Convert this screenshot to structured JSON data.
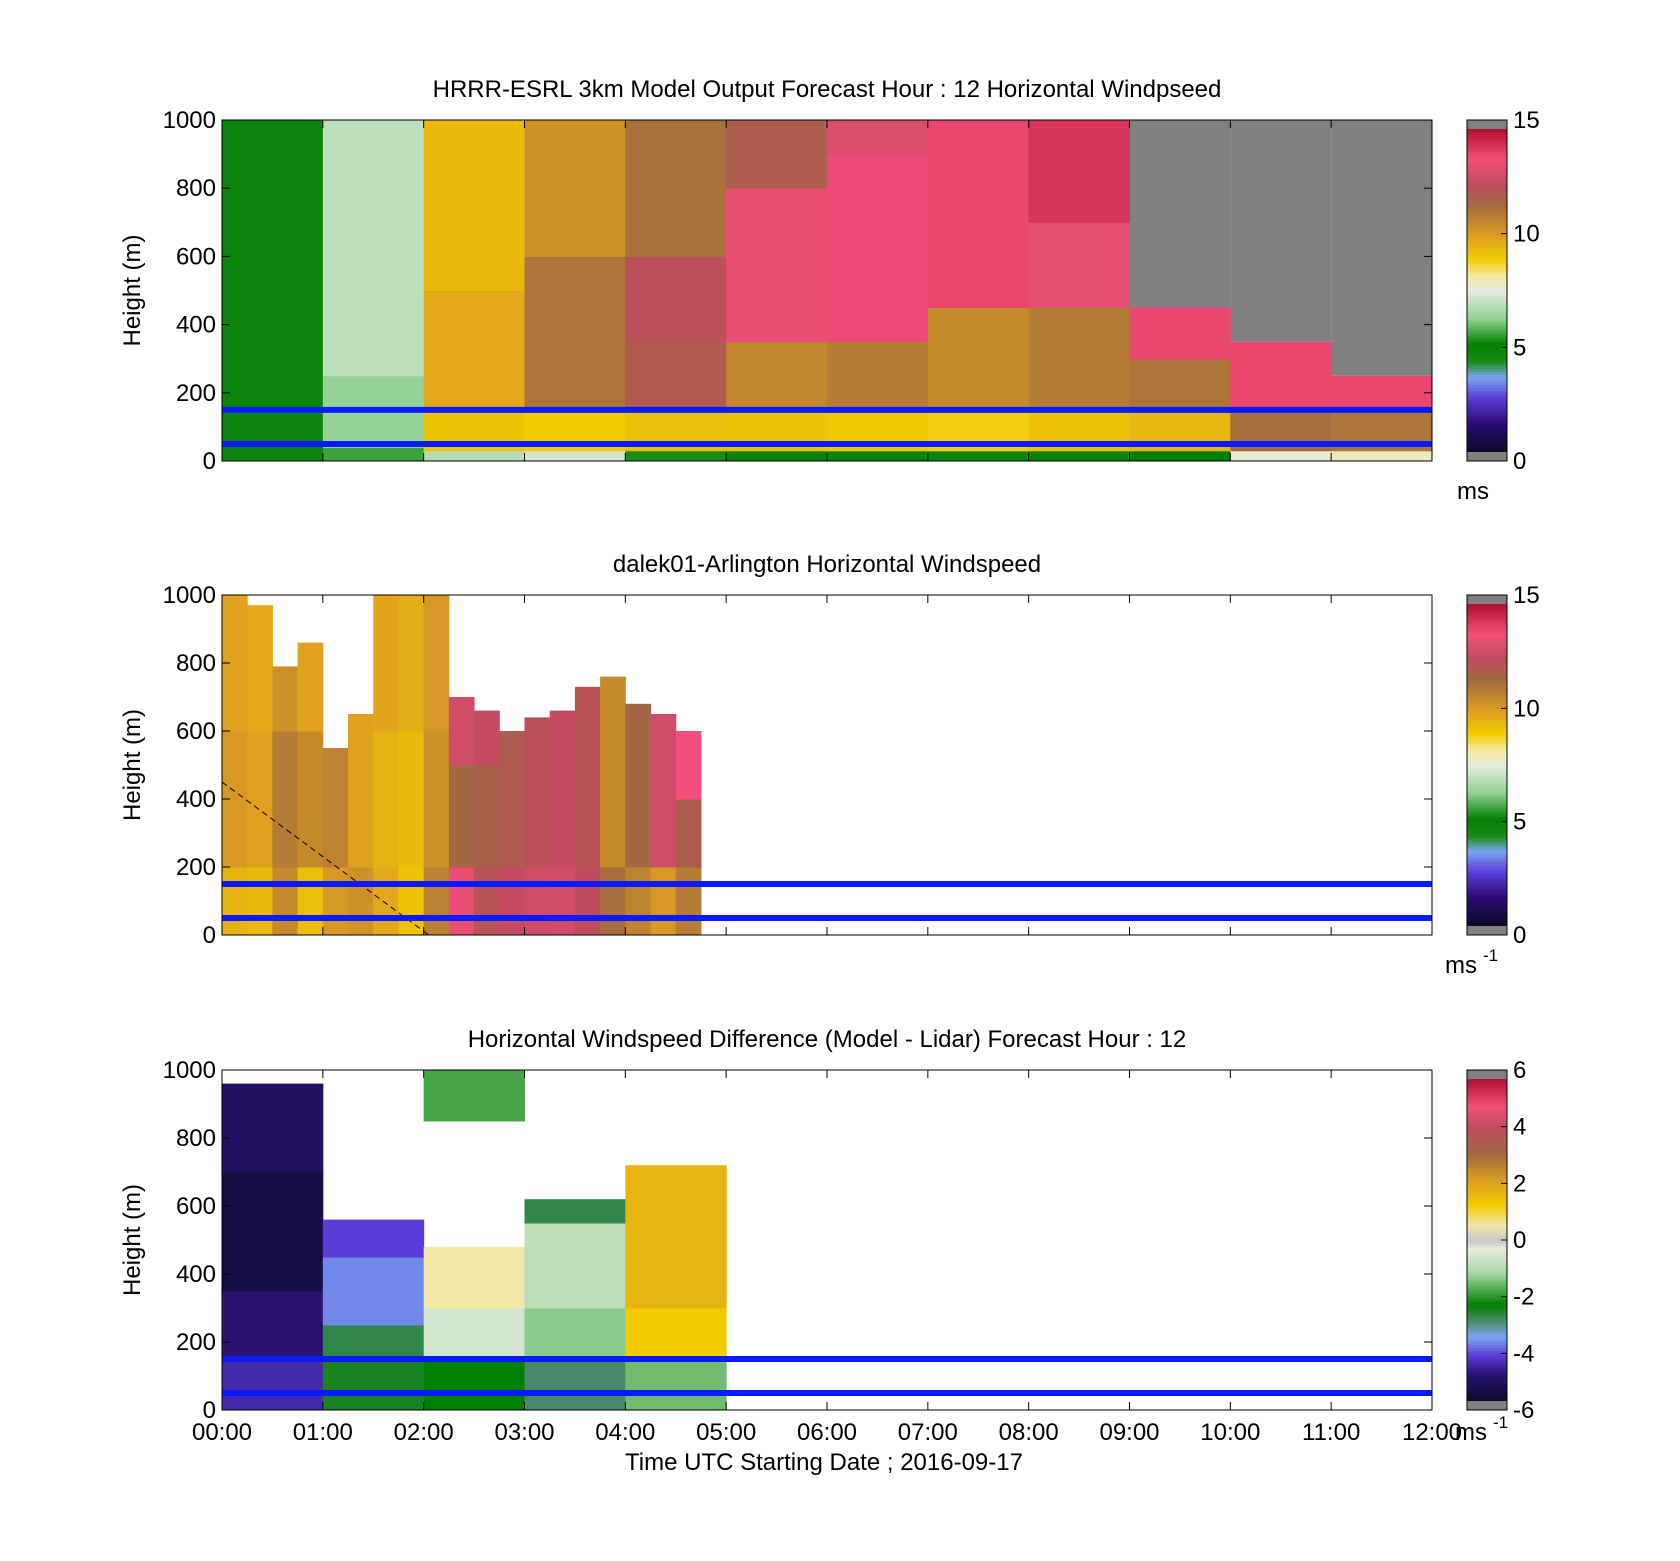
{
  "chart_data": [
    {
      "type": "heatmap",
      "title": "HRRR-ESRL 3km Model Output   Forecast Hour : 12 Horizontal Windpseed",
      "xlabel": "",
      "ylabel": "Height (m)",
      "xlim": [
        0,
        12
      ],
      "ylim": [
        0,
        1000
      ],
      "yticks": [
        0,
        200,
        400,
        600,
        800,
        1000
      ],
      "xticks": [
        0,
        1,
        2,
        3,
        4,
        5,
        6,
        7,
        8,
        9,
        10,
        11,
        12
      ],
      "xticklabels": [],
      "colorbar": {
        "range": [
          0,
          15
        ],
        "ticks": [
          0,
          5,
          10,
          15
        ],
        "unit": "ms",
        "unit_sup": ""
      },
      "hlines": [
        150,
        50
      ],
      "grid": false,
      "columns": [
        {
          "t0": 0,
          "t1": 1,
          "top": 1000,
          "values": [
            [
              0,
              40,
              4.6
            ],
            [
              40,
              60,
              4.8
            ],
            [
              60,
              1000,
              4.7
            ]
          ]
        },
        {
          "t0": 1,
          "t1": 2,
          "top": 1000,
          "values": [
            [
              0,
              40,
              5.5
            ],
            [
              40,
              250,
              6.3
            ],
            [
              250,
              1000,
              6.9
            ]
          ]
        },
        {
          "t0": 2,
          "t1": 3,
          "top": 1000,
          "values": [
            [
              0,
              30,
              6.8
            ],
            [
              30,
              150,
              9.2
            ],
            [
              150,
              500,
              9.8
            ],
            [
              500,
              1000,
              9.4
            ]
          ]
        },
        {
          "t0": 3,
          "t1": 4,
          "top": 1000,
          "values": [
            [
              0,
              30,
              7.2
            ],
            [
              30,
              150,
              9.0
            ],
            [
              150,
              600,
              11.2
            ],
            [
              600,
              1000,
              10.4
            ]
          ]
        },
        {
          "t0": 4,
          "t1": 5,
          "top": 1000,
          "values": [
            [
              0,
              30,
              5.2
            ],
            [
              30,
              150,
              9.3
            ],
            [
              150,
              350,
              12.0
            ],
            [
              350,
              600,
              12.3
            ],
            [
              600,
              1000,
              11.3
            ]
          ]
        },
        {
          "t0": 5,
          "t1": 6,
          "top": 1000,
          "values": [
            [
              0,
              30,
              4.8
            ],
            [
              30,
              150,
              9.2
            ],
            [
              150,
              350,
              10.7
            ],
            [
              350,
              800,
              13.4
            ],
            [
              800,
              1000,
              11.9
            ]
          ]
        },
        {
          "t0": 6,
          "t1": 7,
          "top": 1000,
          "values": [
            [
              0,
              30,
              4.8
            ],
            [
              30,
              150,
              9.1
            ],
            [
              150,
              350,
              11.0
            ],
            [
              350,
              900,
              13.7
            ],
            [
              900,
              1000,
              13.1
            ]
          ]
        },
        {
          "t0": 7,
          "t1": 8,
          "top": 1000,
          "values": [
            [
              0,
              30,
              4.6
            ],
            [
              30,
              150,
              8.9
            ],
            [
              150,
              450,
              10.6
            ],
            [
              450,
              1000,
              13.8
            ]
          ]
        },
        {
          "t0": 8,
          "t1": 9,
          "top": 1000,
          "values": [
            [
              0,
              30,
              4.8
            ],
            [
              30,
              150,
              9.2
            ],
            [
              150,
              450,
              11.0
            ],
            [
              450,
              700,
              13.3
            ],
            [
              700,
              1000,
              14.2
            ]
          ]
        },
        {
          "t0": 9,
          "t1": 10,
          "top": 450,
          "values": [
            [
              0,
              30,
              5.0
            ],
            [
              30,
              150,
              9.5
            ],
            [
              150,
              300,
              11.2
            ],
            [
              300,
              450,
              13.8
            ]
          ]
        },
        {
          "t0": 10,
          "t1": 11,
          "top": 350,
          "values": [
            [
              0,
              30,
              7.7
            ],
            [
              30,
              150,
              11.4
            ],
            [
              150,
              350,
              13.8
            ]
          ]
        },
        {
          "t0": 11,
          "t1": 12,
          "top": 250,
          "values": [
            [
              0,
              30,
              7.9
            ],
            [
              30,
              150,
              11.2
            ],
            [
              150,
              250,
              13.8
            ]
          ]
        }
      ],
      "nodata_regions": [
        {
          "t0": 9,
          "t1": 10,
          "y0": 450,
          "y1": 1000
        },
        {
          "t0": 10,
          "t1": 11,
          "y0": 350,
          "y1": 1000
        },
        {
          "t0": 11,
          "t1": 12,
          "y0": 250,
          "y1": 1000
        }
      ]
    },
    {
      "type": "heatmap",
      "title": "dalek01-Arlington  Horizontal Windspeed",
      "xlabel": "",
      "ylabel": "Height (m)",
      "xlim": [
        0,
        12
      ],
      "ylim": [
        0,
        1000
      ],
      "yticks": [
        0,
        200,
        400,
        600,
        800,
        1000
      ],
      "xticks": [
        0,
        1,
        2,
        3,
        4,
        5,
        6,
        7,
        8,
        9,
        10,
        11,
        12
      ],
      "xticklabels": [],
      "colorbar": {
        "range": [
          0,
          15
        ],
        "ticks": [
          0,
          5,
          10,
          15
        ],
        "unit": "ms",
        "unit_sup": "-1"
      },
      "hlines": [
        150,
        50
      ],
      "grid": false,
      "dashed_line": {
        "from": [
          0,
          450
        ],
        "to": [
          2.05,
          0
        ]
      },
      "columns": [
        {
          "t0": 0.0,
          "t1": 0.25,
          "top": 1000,
          "values": [
            [
              0,
              200,
              9.6
            ],
            [
              200,
              600,
              10.2
            ],
            [
              600,
              1000,
              10.0
            ]
          ]
        },
        {
          "t0": 0.25,
          "t1": 0.5,
          "top": 970,
          "values": [
            [
              0,
              200,
              9.4
            ],
            [
              200,
              600,
              10.0
            ],
            [
              600,
              970,
              9.8
            ]
          ]
        },
        {
          "t0": 0.5,
          "t1": 0.75,
          "top": 790,
          "values": [
            [
              0,
              200,
              10.6
            ],
            [
              200,
              600,
              11.0
            ],
            [
              600,
              790,
              10.4
            ]
          ]
        },
        {
          "t0": 0.75,
          "t1": 1.0,
          "top": 860,
          "values": [
            [
              0,
              200,
              9.3
            ],
            [
              200,
              600,
              10.6
            ],
            [
              600,
              860,
              10.0
            ]
          ]
        },
        {
          "t0": 1.0,
          "t1": 1.25,
          "top": 550,
          "values": [
            [
              0,
              200,
              10.2
            ],
            [
              200,
              550,
              10.8
            ]
          ]
        },
        {
          "t0": 1.25,
          "t1": 1.5,
          "top": 650,
          "values": [
            [
              0,
              200,
              10.4
            ],
            [
              200,
              650,
              10.0
            ]
          ]
        },
        {
          "t0": 1.5,
          "t1": 1.75,
          "top": 1000,
          "values": [
            [
              0,
              200,
              9.8
            ],
            [
              200,
              600,
              9.6
            ],
            [
              600,
              1000,
              9.9
            ]
          ]
        },
        {
          "t0": 1.75,
          "t1": 2.0,
          "top": 1000,
          "values": [
            [
              0,
              200,
              9.2
            ],
            [
              200,
              600,
              9.4
            ],
            [
              600,
              1000,
              9.7
            ]
          ]
        },
        {
          "t0": 2.0,
          "t1": 2.25,
          "top": 1000,
          "values": [
            [
              0,
              200,
              10.9
            ],
            [
              200,
              600,
              10.4
            ],
            [
              600,
              1000,
              10.2
            ]
          ]
        },
        {
          "t0": 2.25,
          "t1": 2.5,
          "top": 700,
          "values": [
            [
              0,
              200,
              13.4
            ],
            [
              200,
              500,
              11.6
            ],
            [
              500,
              700,
              12.8
            ]
          ]
        },
        {
          "t0": 2.5,
          "t1": 2.75,
          "top": 660,
          "values": [
            [
              0,
              200,
              12.2
            ],
            [
              200,
              500,
              11.8
            ],
            [
              500,
              660,
              12.6
            ]
          ]
        },
        {
          "t0": 2.75,
          "t1": 3.0,
          "top": 600,
          "values": [
            [
              0,
              200,
              12.6
            ],
            [
              200,
              600,
              12.0
            ]
          ]
        },
        {
          "t0": 3.0,
          "t1": 3.25,
          "top": 640,
          "values": [
            [
              0,
              200,
              12.8
            ],
            [
              200,
              640,
              12.3
            ]
          ]
        },
        {
          "t0": 3.25,
          "t1": 3.5,
          "top": 660,
          "values": [
            [
              0,
              200,
              12.9
            ],
            [
              200,
              660,
              12.6
            ]
          ]
        },
        {
          "t0": 3.5,
          "t1": 3.75,
          "top": 730,
          "values": [
            [
              0,
              200,
              12.4
            ],
            [
              200,
              730,
              12.2
            ]
          ]
        },
        {
          "t0": 3.75,
          "t1": 4.0,
          "top": 760,
          "values": [
            [
              0,
              200,
              11.4
            ],
            [
              200,
              760,
              10.6
            ]
          ]
        },
        {
          "t0": 4.0,
          "t1": 4.25,
          "top": 680,
          "values": [
            [
              0,
              200,
              10.8
            ],
            [
              200,
              680,
              11.6
            ]
          ]
        },
        {
          "t0": 4.25,
          "t1": 4.5,
          "top": 650,
          "values": [
            [
              0,
              200,
              10.2
            ],
            [
              200,
              650,
              12.8
            ]
          ]
        },
        {
          "t0": 4.5,
          "t1": 4.75,
          "top": 600,
          "values": [
            [
              0,
              200,
              11.0
            ],
            [
              200,
              400,
              11.9
            ],
            [
              400,
              600,
              13.6
            ]
          ]
        }
      ]
    },
    {
      "type": "heatmap",
      "title": "Horizontal Windspeed Difference (Model - Lidar) Forecast Hour : 12",
      "xlabel": "Time UTC  Starting Date ; 2016-09-17",
      "ylabel": "Height (m)",
      "xlim": [
        0,
        12
      ],
      "ylim": [
        0,
        1000
      ],
      "yticks": [
        0,
        200,
        400,
        600,
        800,
        1000
      ],
      "xticks": [
        0,
        1,
        2,
        3,
        4,
        5,
        6,
        7,
        8,
        9,
        10,
        11,
        12
      ],
      "xticklabels": [
        "00:00",
        "01:00",
        "02:00",
        "03:00",
        "04:00",
        "05:00",
        "06:00",
        "07:00",
        "08:00",
        "09:00",
        "10:00",
        "11:00",
        "12:00"
      ],
      "colorbar": {
        "range": [
          -6,
          6
        ],
        "ticks": [
          -6,
          -4,
          -2,
          0,
          2,
          4,
          6
        ],
        "unit": "ms",
        "unit_sup": "-1"
      },
      "hlines": [
        150,
        50
      ],
      "grid": false,
      "columns": [
        {
          "t0": 0,
          "t1": 1,
          "top": 960,
          "values": [
            [
              0,
              150,
              -4.6
            ],
            [
              150,
              350,
              -5.0
            ],
            [
              350,
              700,
              -5.6
            ],
            [
              700,
              960,
              -5.2
            ]
          ]
        },
        {
          "t0": 1,
          "t1": 2,
          "top": 560,
          "values": [
            [
              0,
              150,
              -2.6
            ],
            [
              150,
              250,
              -2.8
            ],
            [
              250,
              450,
              -3.8
            ],
            [
              450,
              560,
              -4.3
            ]
          ]
        },
        {
          "t0": 2,
          "t1": 3,
          "top": 480,
          "values": [
            [
              0,
              150,
              -2.4
            ],
            [
              150,
              300,
              -0.6
            ],
            [
              300,
              480,
              0.6
            ]
          ]
        },
        {
          "t0": 2,
          "t1": 3,
          "y0": 850,
          "top": 1000,
          "values": [
            [
              850,
              1000,
              -1.9
            ]
          ]
        },
        {
          "t0": 3,
          "t1": 4,
          "top": 620,
          "values": [
            [
              0,
              150,
              -3.0
            ],
            [
              150,
              300,
              -1.4
            ],
            [
              300,
              550,
              -0.9
            ],
            [
              550,
              620,
              -2.8
            ]
          ]
        },
        {
          "t0": 4,
          "t1": 5,
          "top": 720,
          "values": [
            [
              0,
              150,
              -1.6
            ],
            [
              150,
              300,
              1.3
            ],
            [
              300,
              720,
              1.8
            ]
          ]
        }
      ]
    }
  ]
}
